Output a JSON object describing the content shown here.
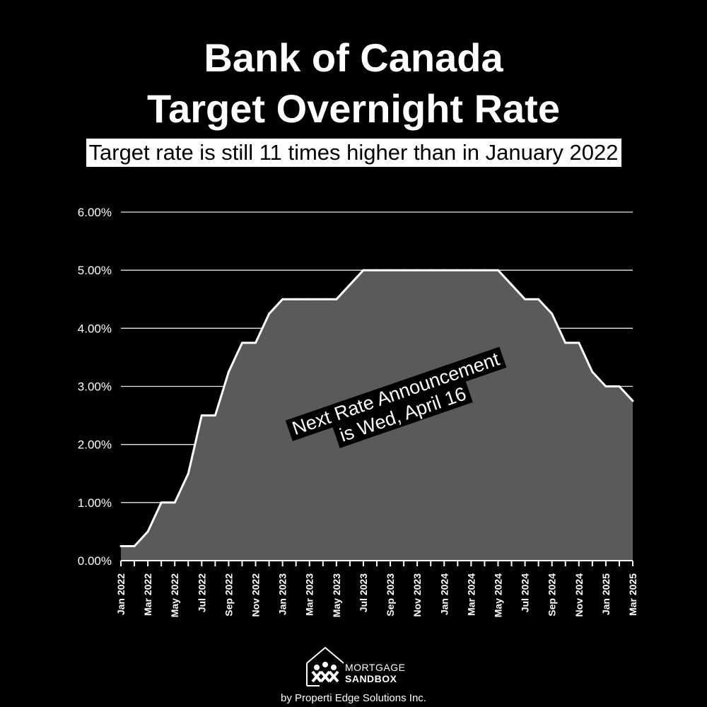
{
  "colors": {
    "background": "#000000",
    "area_fill": "#5a5a5a",
    "line": "#ffffff",
    "grid": "#ffffff",
    "text": "#ffffff"
  },
  "chart_data": {
    "type": "area",
    "title": [
      "Bank of Canada",
      "Target Overnight Rate"
    ],
    "subtitle": "Target rate is still 11 times higher than in January 2022",
    "xlabel": "",
    "ylabel": "",
    "ylim": [
      0,
      6
    ],
    "y_ticks": [
      "0.00%",
      "1.00%",
      "2.00%",
      "3.00%",
      "4.00%",
      "5.00%",
      "6.00%"
    ],
    "grid": true,
    "legend": "none",
    "x_tick_labels": [
      "Jan 2022",
      "Mar 2022",
      "May 2022",
      "Jul 2022",
      "Sep 2022",
      "Nov 2022",
      "Jan 2023",
      "Mar 2023",
      "May 2023",
      "Jul 2023",
      "Sep 2023",
      "Nov 2023",
      "Jan 2024",
      "Mar 2024",
      "May 2024",
      "Jul 2024",
      "Sep 2024",
      "Nov 2024",
      "Jan 2025",
      "Mar 2025"
    ],
    "categories": [
      "Jan 2022",
      "Feb 2022",
      "Mar 2022",
      "Apr 2022",
      "May 2022",
      "Jun 2022",
      "Jul 2022",
      "Aug 2022",
      "Sep 2022",
      "Oct 2022",
      "Nov 2022",
      "Dec 2022",
      "Jan 2023",
      "Feb 2023",
      "Mar 2023",
      "Apr 2023",
      "May 2023",
      "Jun 2023",
      "Jul 2023",
      "Aug 2023",
      "Sep 2023",
      "Oct 2023",
      "Nov 2023",
      "Dec 2023",
      "Jan 2024",
      "Feb 2024",
      "Mar 2024",
      "Apr 2024",
      "May 2024",
      "Jun 2024",
      "Jul 2024",
      "Aug 2024",
      "Sep 2024",
      "Oct 2024",
      "Nov 2024",
      "Dec 2024",
      "Jan 2025",
      "Feb 2025",
      "Mar 2025"
    ],
    "values": [
      0.25,
      0.25,
      0.5,
      1.0,
      1.0,
      1.5,
      2.5,
      2.5,
      3.25,
      3.75,
      3.75,
      4.25,
      4.5,
      4.5,
      4.5,
      4.5,
      4.5,
      4.75,
      5.0,
      5.0,
      5.0,
      5.0,
      5.0,
      5.0,
      5.0,
      5.0,
      5.0,
      5.0,
      5.0,
      4.75,
      4.5,
      4.5,
      4.25,
      3.75,
      3.75,
      3.25,
      3.0,
      3.0,
      2.75
    ],
    "annotation": [
      "Next Rate Announcement",
      "is Wed, April 16"
    ]
  },
  "branding": {
    "logo_icon": "house-people-icon",
    "logo_line1": "MORTGAGE",
    "logo_line2": "SANDBOX",
    "credit": "by Properti Edge Solutions Inc."
  }
}
